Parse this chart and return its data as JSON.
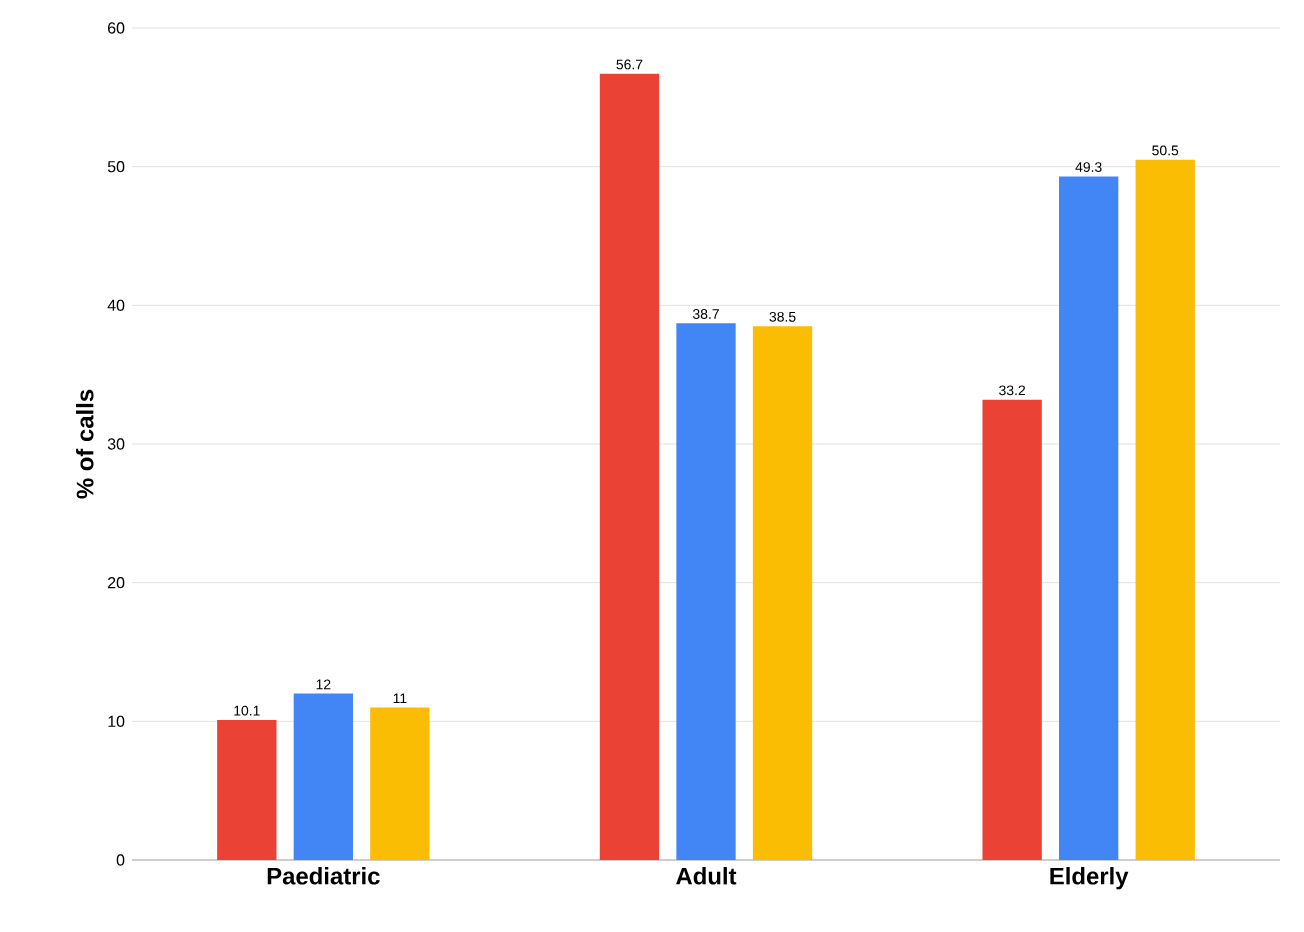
{
  "chart_data": {
    "type": "bar",
    "ylabel": "% of calls",
    "categories": [
      "Paediatric",
      "Adult",
      "Elderly"
    ],
    "series": [
      {
        "color": "#ea4335",
        "values": [
          10.1,
          56.7,
          33.2
        ]
      },
      {
        "color": "#4285f4",
        "values": [
          12,
          38.7,
          49.3
        ]
      },
      {
        "color": "#fbbc04",
        "values": [
          11,
          38.5,
          50.5
        ]
      }
    ],
    "ylim": [
      0,
      60
    ],
    "yticks": [
      0,
      10,
      20,
      30,
      40,
      50,
      60
    ],
    "grid": "y",
    "data_labels": true
  }
}
